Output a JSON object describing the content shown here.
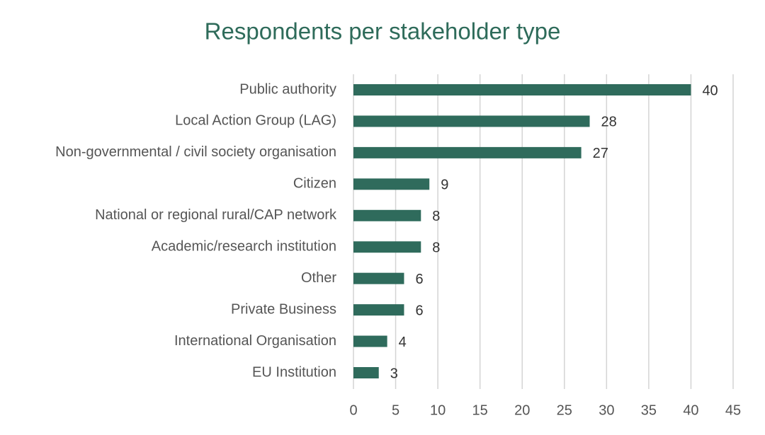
{
  "chart_data": {
    "type": "bar",
    "orientation": "horizontal",
    "title": "Respondents per stakeholder type",
    "categories": [
      "Public authority",
      "Local Action Group (LAG)",
      "Non-governmental / civil society organisation",
      "Citizen",
      "National or regional rural/CAP network",
      "Academic/research institution",
      "Other",
      "Private Business",
      "International Organisation",
      "EU Institution"
    ],
    "values": [
      40,
      28,
      27,
      9,
      8,
      8,
      6,
      6,
      4,
      3
    ],
    "color": "#2f6b5c",
    "xlim": [
      0,
      45
    ],
    "xticks": [
      0,
      5,
      10,
      15,
      20,
      25,
      30,
      35,
      40,
      45
    ],
    "grid": true
  }
}
